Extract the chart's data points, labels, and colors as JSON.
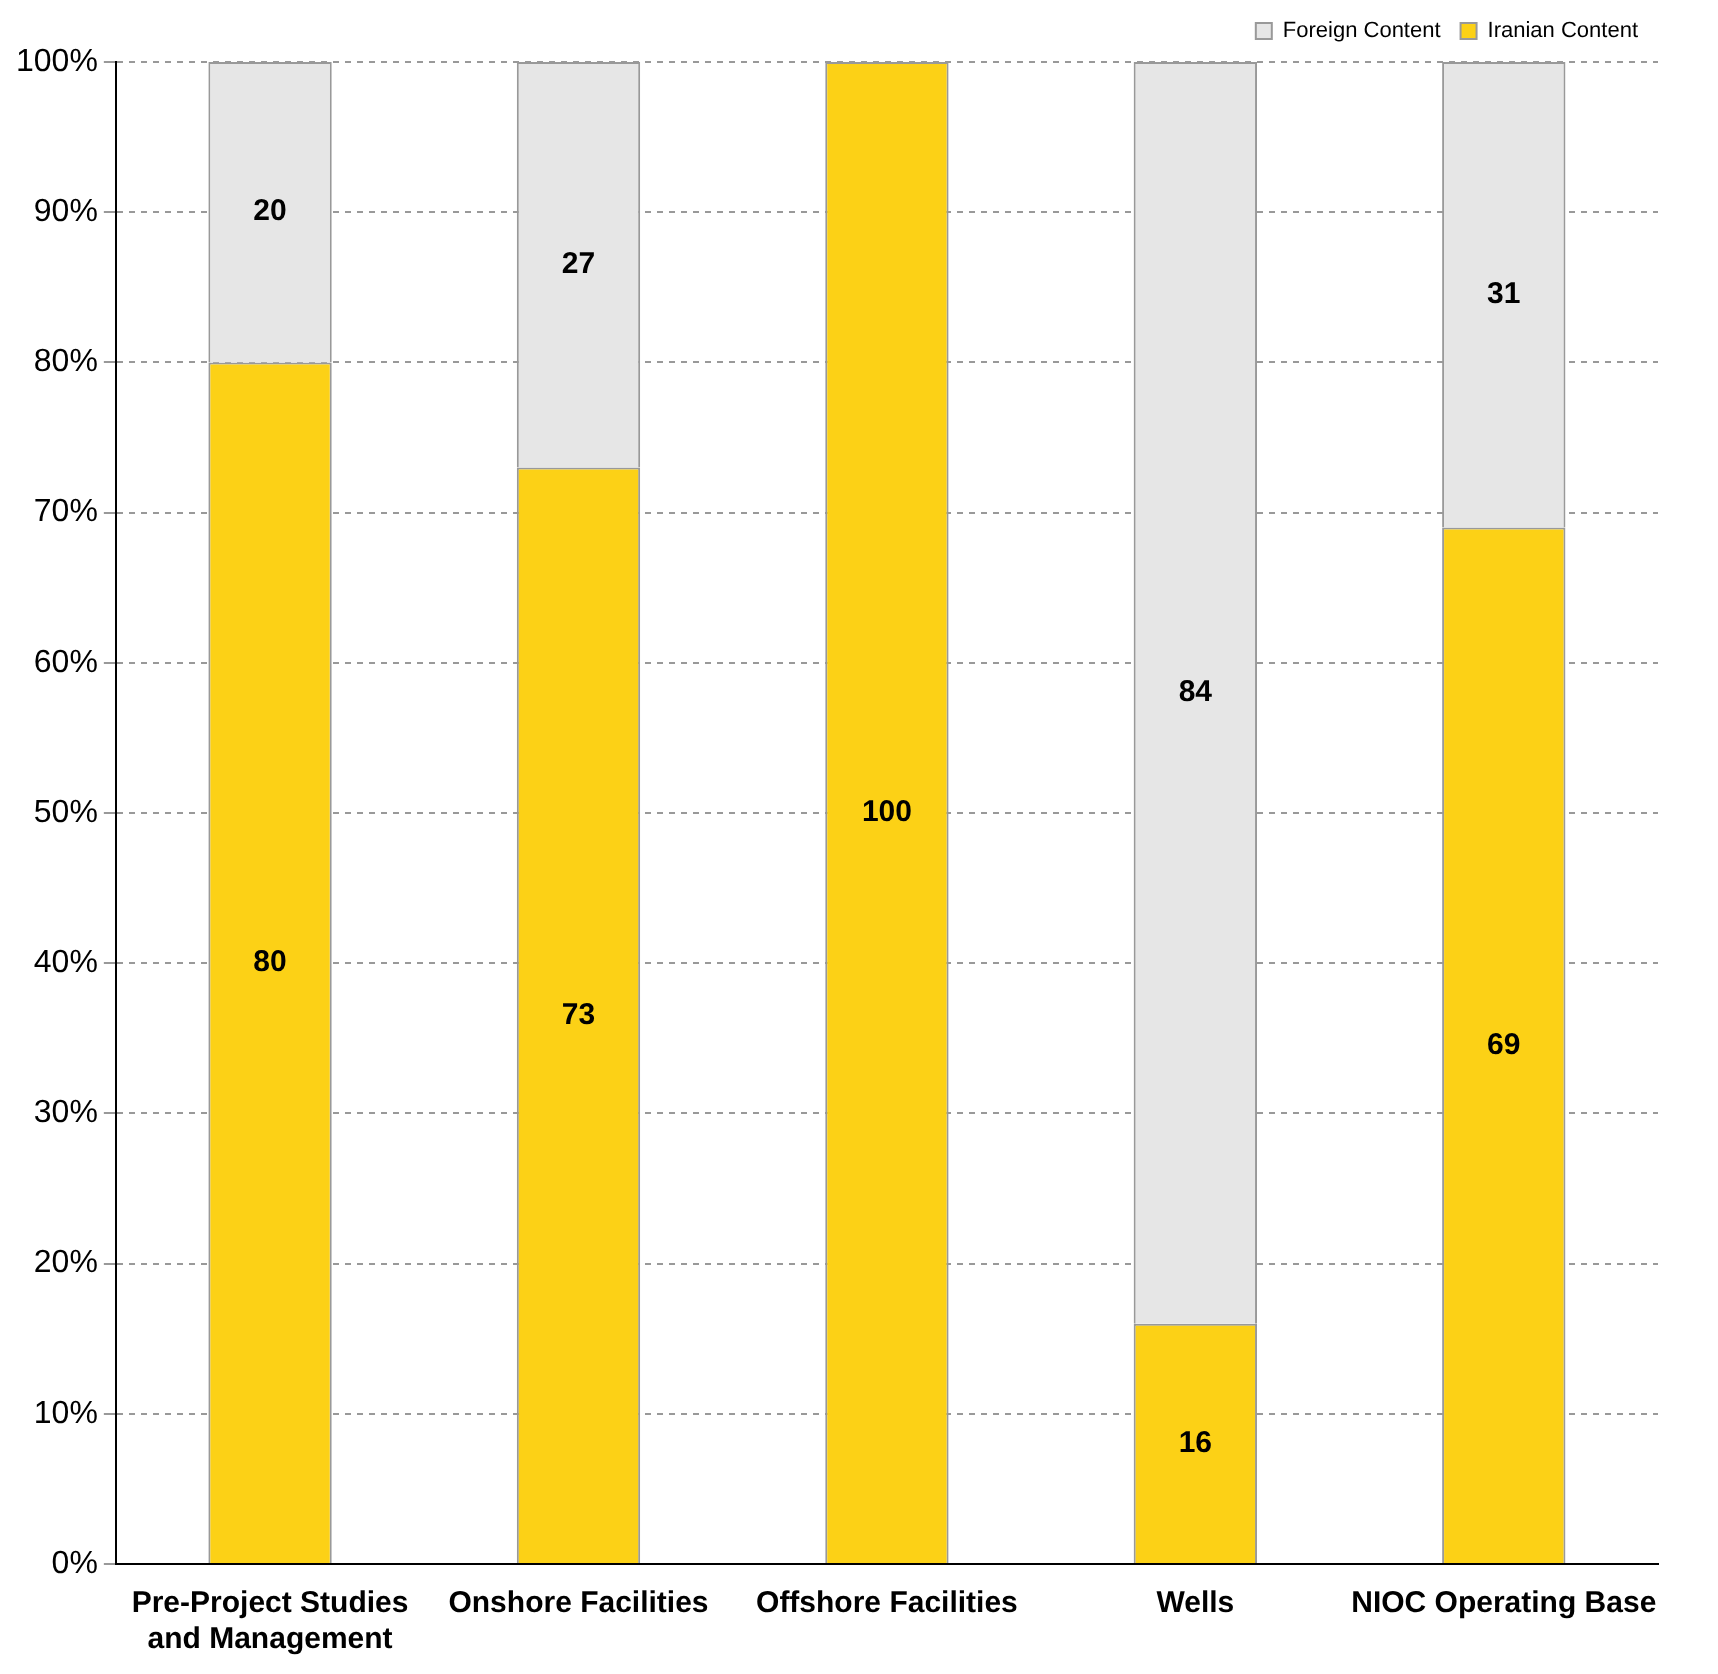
{
  "chart_data": {
    "type": "bar",
    "stacked": true,
    "categories": [
      "Pre-Project Studies and Management",
      "Onshore Facilities",
      "Offshore Facilities",
      "Wells",
      "NIOC Operating Base"
    ],
    "series": [
      {
        "name": "Iranian Content",
        "color": "#fcd116",
        "values": [
          80,
          73,
          100,
          16,
          69
        ],
        "value_labels": [
          "80",
          "73",
          "100",
          "16",
          "69"
        ]
      },
      {
        "name": "Foreign Content",
        "color": "#e6e6e6",
        "values": [
          20,
          27,
          0,
          84,
          31
        ],
        "value_labels": [
          "20",
          "27",
          null,
          "84",
          "31"
        ]
      }
    ],
    "ylim": [
      0,
      100
    ],
    "yticks": [
      {
        "value": 0,
        "label": "0%"
      },
      {
        "value": 10,
        "label": "10%"
      },
      {
        "value": 20,
        "label": "20%"
      },
      {
        "value": 30,
        "label": "30%"
      },
      {
        "value": 40,
        "label": "40%"
      },
      {
        "value": 50,
        "label": "50%"
      },
      {
        "value": 60,
        "label": "60%"
      },
      {
        "value": 70,
        "label": "70%"
      },
      {
        "value": 80,
        "label": "80%"
      },
      {
        "value": 90,
        "label": "90%"
      },
      {
        "value": 100,
        "label": "100%"
      }
    ],
    "grid": "y",
    "line_style": "dashed",
    "legend": "top right"
  }
}
